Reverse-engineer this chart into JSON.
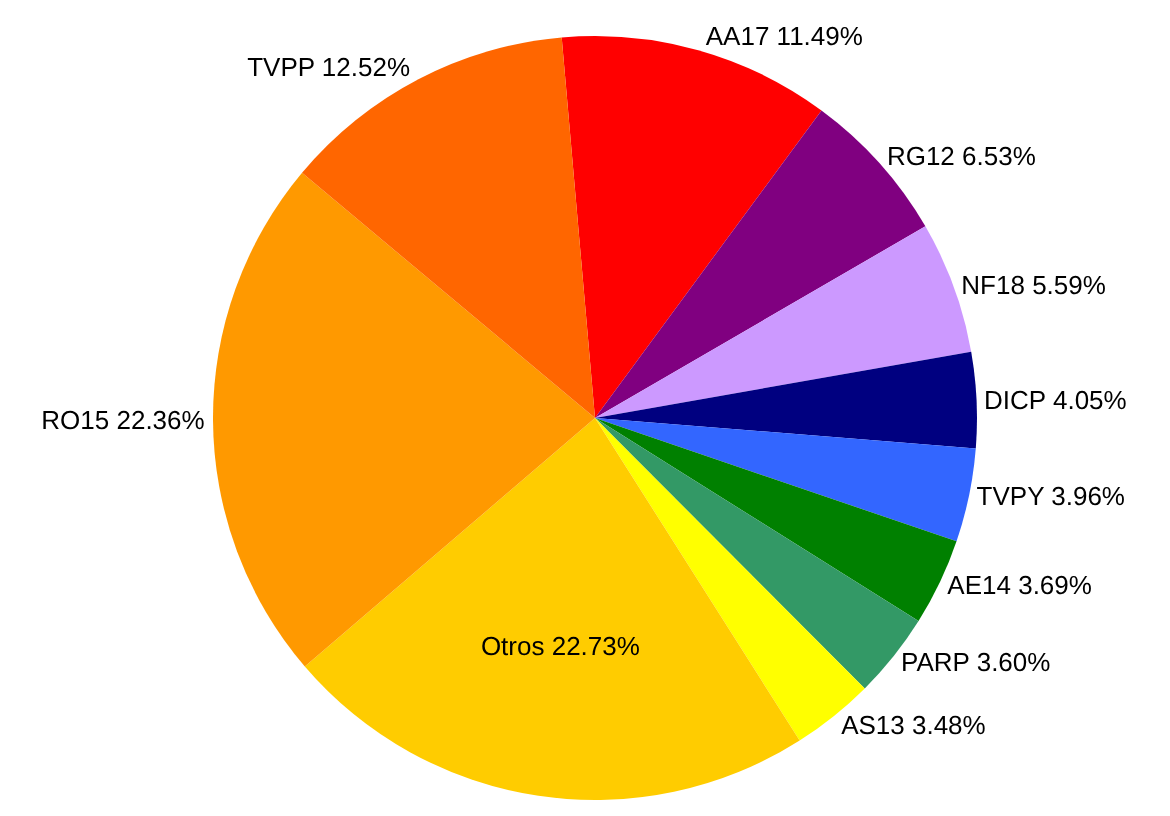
{
  "chart_data": {
    "type": "pie",
    "categories": [
      "AA17",
      "RG12",
      "NF18",
      "DICP",
      "TVPY",
      "AE14",
      "PARP",
      "AS13",
      "Otros",
      "RO15",
      "TVPP"
    ],
    "values": [
      11.49,
      6.53,
      5.59,
      4.05,
      3.96,
      3.69,
      3.6,
      3.48,
      22.73,
      22.36,
      12.52
    ],
    "value_labels": [
      "11.49%",
      "6.53%",
      "5.59%",
      "4.05%",
      "3.96%",
      "3.69%",
      "3.60%",
      "3.48%",
      "22.73%",
      "22.36%",
      "12.52%"
    ],
    "colors": [
      "#ff0000",
      "#800080",
      "#cc99ff",
      "#000080",
      "#3366ff",
      "#008000",
      "#339966",
      "#ffff00",
      "#ffcc00",
      "#ff9900",
      "#ff6600"
    ],
    "legend": false
  }
}
